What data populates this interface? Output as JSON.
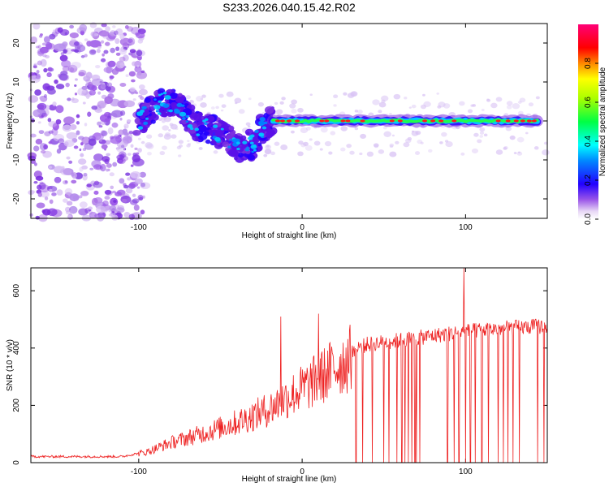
{
  "title": "S233.2026.040.15.42.R02",
  "chart_data": [
    {
      "type": "heatmap",
      "xlabel": "Height of straight line (km)",
      "ylabel": "Frequency (Hz)",
      "xlim": [
        -166,
        150
      ],
      "ylim": [
        -25,
        25
      ],
      "xticks": [
        -100,
        0,
        100
      ],
      "yticks": [
        -20,
        -10,
        0,
        10,
        20
      ],
      "colorbar": {
        "label": "Normalized spectral amplitude",
        "range": [
          0,
          1
        ],
        "ticks": [
          "0.0",
          "0.2",
          "0.4",
          "0.6",
          "0.8"
        ]
      },
      "ridge_frequency_profile": [
        {
          "x": -100,
          "y": 0
        },
        {
          "x": -92,
          "y": 3
        },
        {
          "x": -85,
          "y": 5
        },
        {
          "x": -78,
          "y": 5
        },
        {
          "x": -72,
          "y": 2
        },
        {
          "x": -65,
          "y": -1
        },
        {
          "x": -58,
          "y": -2
        },
        {
          "x": -50,
          "y": -3
        },
        {
          "x": -44,
          "y": -5
        },
        {
          "x": -38,
          "y": -7
        },
        {
          "x": -30,
          "y": -6
        },
        {
          "x": -25,
          "y": -2
        },
        {
          "x": -18,
          "y": 0
        },
        {
          "x": -10,
          "y": 0
        },
        {
          "x": 0,
          "y": 0
        },
        {
          "x": 40,
          "y": 0
        },
        {
          "x": 90,
          "y": 0
        },
        {
          "x": 150,
          "y": 0
        }
      ]
    },
    {
      "type": "line",
      "xlabel": "Height of straight line (km)",
      "ylabel": "SNR (10 * v/v)",
      "xlim": [
        -166,
        150
      ],
      "ylim": [
        0,
        680
      ],
      "xticks": [
        -100,
        0,
        100
      ],
      "yticks": [
        0,
        200,
        400,
        600
      ],
      "series_color": "#ee2222",
      "snr_envelope": [
        {
          "x": -166,
          "y": 22
        },
        {
          "x": -110,
          "y": 22
        },
        {
          "x": -95,
          "y": 40
        },
        {
          "x": -80,
          "y": 75
        },
        {
          "x": -60,
          "y": 110
        },
        {
          "x": -40,
          "y": 150
        },
        {
          "x": -20,
          "y": 200
        },
        {
          "x": -10,
          "y": 240
        },
        {
          "x": 0,
          "y": 275
        },
        {
          "x": 10,
          "y": 310
        },
        {
          "x": 20,
          "y": 355
        },
        {
          "x": 30,
          "y": 390
        },
        {
          "x": 40,
          "y": 410
        },
        {
          "x": 60,
          "y": 425
        },
        {
          "x": 80,
          "y": 440
        },
        {
          "x": 100,
          "y": 455
        },
        {
          "x": 120,
          "y": 465
        },
        {
          "x": 150,
          "y": 475
        }
      ],
      "spikes": [
        {
          "x": -13,
          "y": 510
        },
        {
          "x": 10,
          "y": 520
        },
        {
          "x": 99,
          "y": 680
        }
      ],
      "dropout_positions": [
        33,
        37,
        43,
        50,
        53,
        58,
        61,
        63,
        65,
        67,
        69,
        70,
        72,
        89,
        93,
        96,
        100,
        103,
        106,
        110,
        114,
        120,
        123,
        126,
        129,
        133,
        144,
        148
      ]
    }
  ]
}
